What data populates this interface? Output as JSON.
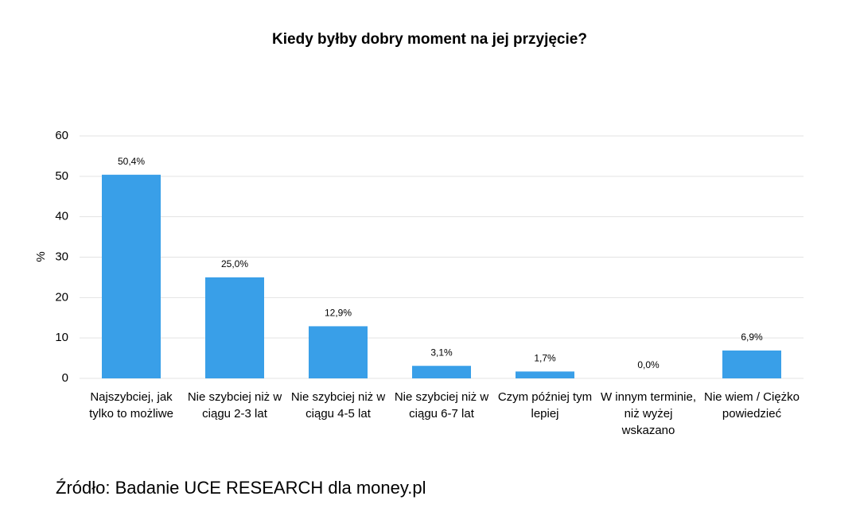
{
  "chart_data": {
    "type": "bar",
    "title": "Kiedy byłby dobry moment na jej przyjęcie?",
    "y_label": "%",
    "categories": [
      "Najszybciej, jak tylko to możliwe",
      "Nie szybciej niż w ciągu 2-3 lat",
      "Nie szybciej niż w ciągu 4-5 lat",
      "Nie szybciej niż w ciągu 6-7 lat",
      "Czym później tym lepiej",
      "W innym terminie, niż wyżej wskazano",
      "Nie wiem / Ciężko powiedzieć"
    ],
    "values": [
      50.4,
      25.0,
      12.9,
      3.1,
      1.7,
      0.0,
      6.9
    ],
    "value_labels": [
      "50,4%",
      "25,0%",
      "12,9%",
      "3,1%",
      "1,7%",
      "0,0%",
      "6,9%"
    ],
    "color": "#399fe8",
    "ylim": [
      0,
      60
    ],
    "yticks": [
      0,
      10,
      20,
      30,
      40,
      50,
      60
    ],
    "grid": true,
    "source": "Źródło: Badanie UCE RESEARCH dla money.pl"
  }
}
